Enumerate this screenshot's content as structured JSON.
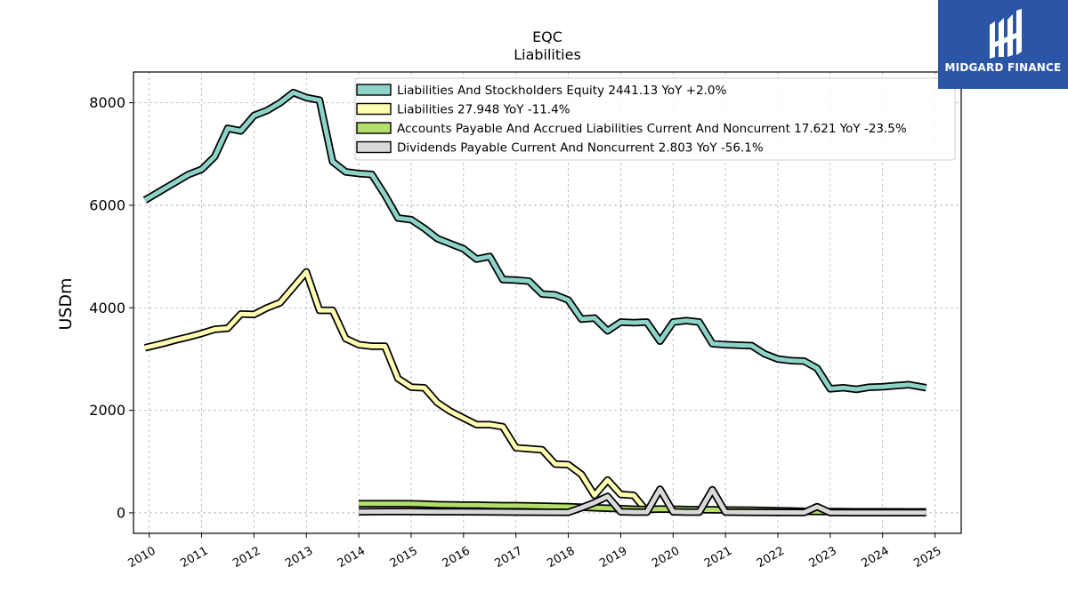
{
  "chart_data": {
    "type": "line",
    "title": "EQC",
    "subtitle": "Liabilities",
    "ylabel": "USDm",
    "xlabel": "",
    "ylim": [
      -400,
      8600
    ],
    "xlim": [
      2009.7,
      2025.5
    ],
    "yticks": [
      0,
      2000,
      4000,
      6000,
      8000
    ],
    "xticks": [
      2010,
      2011,
      2012,
      2013,
      2014,
      2015,
      2016,
      2017,
      2018,
      2019,
      2020,
      2021,
      2022,
      2023,
      2024,
      2025
    ],
    "grid": true,
    "legend_position": "top-right",
    "series": [
      {
        "name": "Liabilities And Stockholders Equity  2441.13 YoY +2.0%",
        "color": "#8dd3c7",
        "x": [
          2009.92,
          2010.25,
          2010.5,
          2010.75,
          2011.0,
          2011.25,
          2011.5,
          2011.75,
          2012.0,
          2012.25,
          2012.5,
          2012.75,
          2013.0,
          2013.25,
          2013.5,
          2013.75,
          2014.0,
          2014.25,
          2014.5,
          2014.75,
          2015.0,
          2015.25,
          2015.5,
          2015.75,
          2016.0,
          2016.25,
          2016.5,
          2016.75,
          2017.0,
          2017.25,
          2017.5,
          2017.75,
          2018.0,
          2018.25,
          2018.5,
          2018.75,
          2019.0,
          2019.25,
          2019.5,
          2019.75,
          2020.0,
          2020.25,
          2020.5,
          2020.75,
          2021.0,
          2021.25,
          2021.5,
          2021.75,
          2022.0,
          2022.25,
          2022.5,
          2022.75,
          2023.0,
          2023.25,
          2023.5,
          2023.75,
          2024.0,
          2024.25,
          2024.5,
          2024.83
        ],
        "values": [
          6100,
          6300,
          6450,
          6600,
          6700,
          6950,
          7500,
          7450,
          7750,
          7850,
          8000,
          8200,
          8100,
          8050,
          6850,
          6650,
          6620,
          6600,
          6200,
          5750,
          5720,
          5550,
          5350,
          5250,
          5150,
          4950,
          5000,
          4550,
          4540,
          4520,
          4270,
          4250,
          4150,
          3780,
          3800,
          3550,
          3720,
          3710,
          3720,
          3350,
          3720,
          3750,
          3720,
          3300,
          3280,
          3270,
          3260,
          3100,
          3000,
          2970,
          2960,
          2820,
          2420,
          2440,
          2410,
          2450,
          2460,
          2480,
          2500,
          2441
        ]
      },
      {
        "name": "Liabilities  27.948 YoY -11.4%",
        "color": "#ffffb3",
        "x": [
          2009.92,
          2010.25,
          2010.5,
          2010.75,
          2011.0,
          2011.25,
          2011.5,
          2011.75,
          2012.0,
          2012.25,
          2012.5,
          2012.75,
          2013.0,
          2013.25,
          2013.5,
          2013.75,
          2014.0,
          2014.25,
          2014.5,
          2014.75,
          2015.0,
          2015.25,
          2015.5,
          2015.75,
          2016.0,
          2016.25,
          2016.5,
          2016.75,
          2017.0,
          2017.25,
          2017.5,
          2017.75,
          2018.0,
          2018.25,
          2018.5,
          2018.75,
          2019.0,
          2019.25,
          2019.5
        ],
        "values": [
          3220,
          3300,
          3370,
          3430,
          3500,
          3580,
          3600,
          3880,
          3870,
          4000,
          4100,
          4400,
          4700,
          3950,
          3950,
          3400,
          3280,
          3250,
          3250,
          2620,
          2450,
          2440,
          2150,
          1980,
          1850,
          1720,
          1720,
          1680,
          1270,
          1250,
          1230,
          950,
          940,
          750,
          340,
          640,
          360,
          340,
          30
        ]
      },
      {
        "name": "Accounts Payable And Accrued Liabilities Current And Noncurrent  17.621 YoY -23.5%",
        "color": "#b3de69",
        "x": [
          2014.0,
          2014.25,
          2014.5,
          2014.75,
          2015.0,
          2015.25,
          2015.5,
          2015.75,
          2016.0,
          2016.25,
          2016.5,
          2016.75,
          2017.0,
          2017.25,
          2017.5,
          2017.75,
          2018.0,
          2018.25,
          2018.5,
          2018.75,
          2019.0,
          2019.25,
          2019.5,
          2019.75,
          2020.0,
          2020.25,
          2020.5,
          2020.75,
          2021.0,
          2021.5,
          2022.0,
          2022.5,
          2023.0,
          2023.5,
          2024.0,
          2024.5,
          2024.83
        ],
        "values": [
          180,
          180,
          180,
          180,
          175,
          170,
          160,
          155,
          150,
          150,
          145,
          140,
          140,
          135,
          130,
          125,
          120,
          110,
          100,
          90,
          80,
          70,
          65,
          75,
          70,
          65,
          60,
          60,
          55,
          50,
          40,
          30,
          25,
          20,
          20,
          18,
          17.6
        ]
      },
      {
        "name": "Dividends Payable Current And Noncurrent  2.803 YoY -56.1%",
        "color": "#d9d9d9",
        "x": [
          2014.0,
          2014.5,
          2015.0,
          2015.5,
          2016.0,
          2016.5,
          2017.0,
          2017.5,
          2018.0,
          2018.25,
          2018.5,
          2018.75,
          2019.0,
          2019.25,
          2019.5,
          2019.75,
          2020.0,
          2020.25,
          2020.5,
          2020.75,
          2021.0,
          2021.5,
          2022.0,
          2022.5,
          2022.75,
          2023.0,
          2023.5,
          2024.0,
          2024.5,
          2024.83
        ],
        "values": [
          20,
          25,
          25,
          22,
          20,
          18,
          15,
          12,
          10,
          100,
          200,
          320,
          20,
          15,
          15,
          460,
          20,
          15,
          15,
          450,
          15,
          10,
          8,
          5,
          120,
          5,
          4,
          3,
          3,
          2.8
        ]
      }
    ]
  },
  "logo": {
    "text": "MIDGARD FINANCE"
  }
}
